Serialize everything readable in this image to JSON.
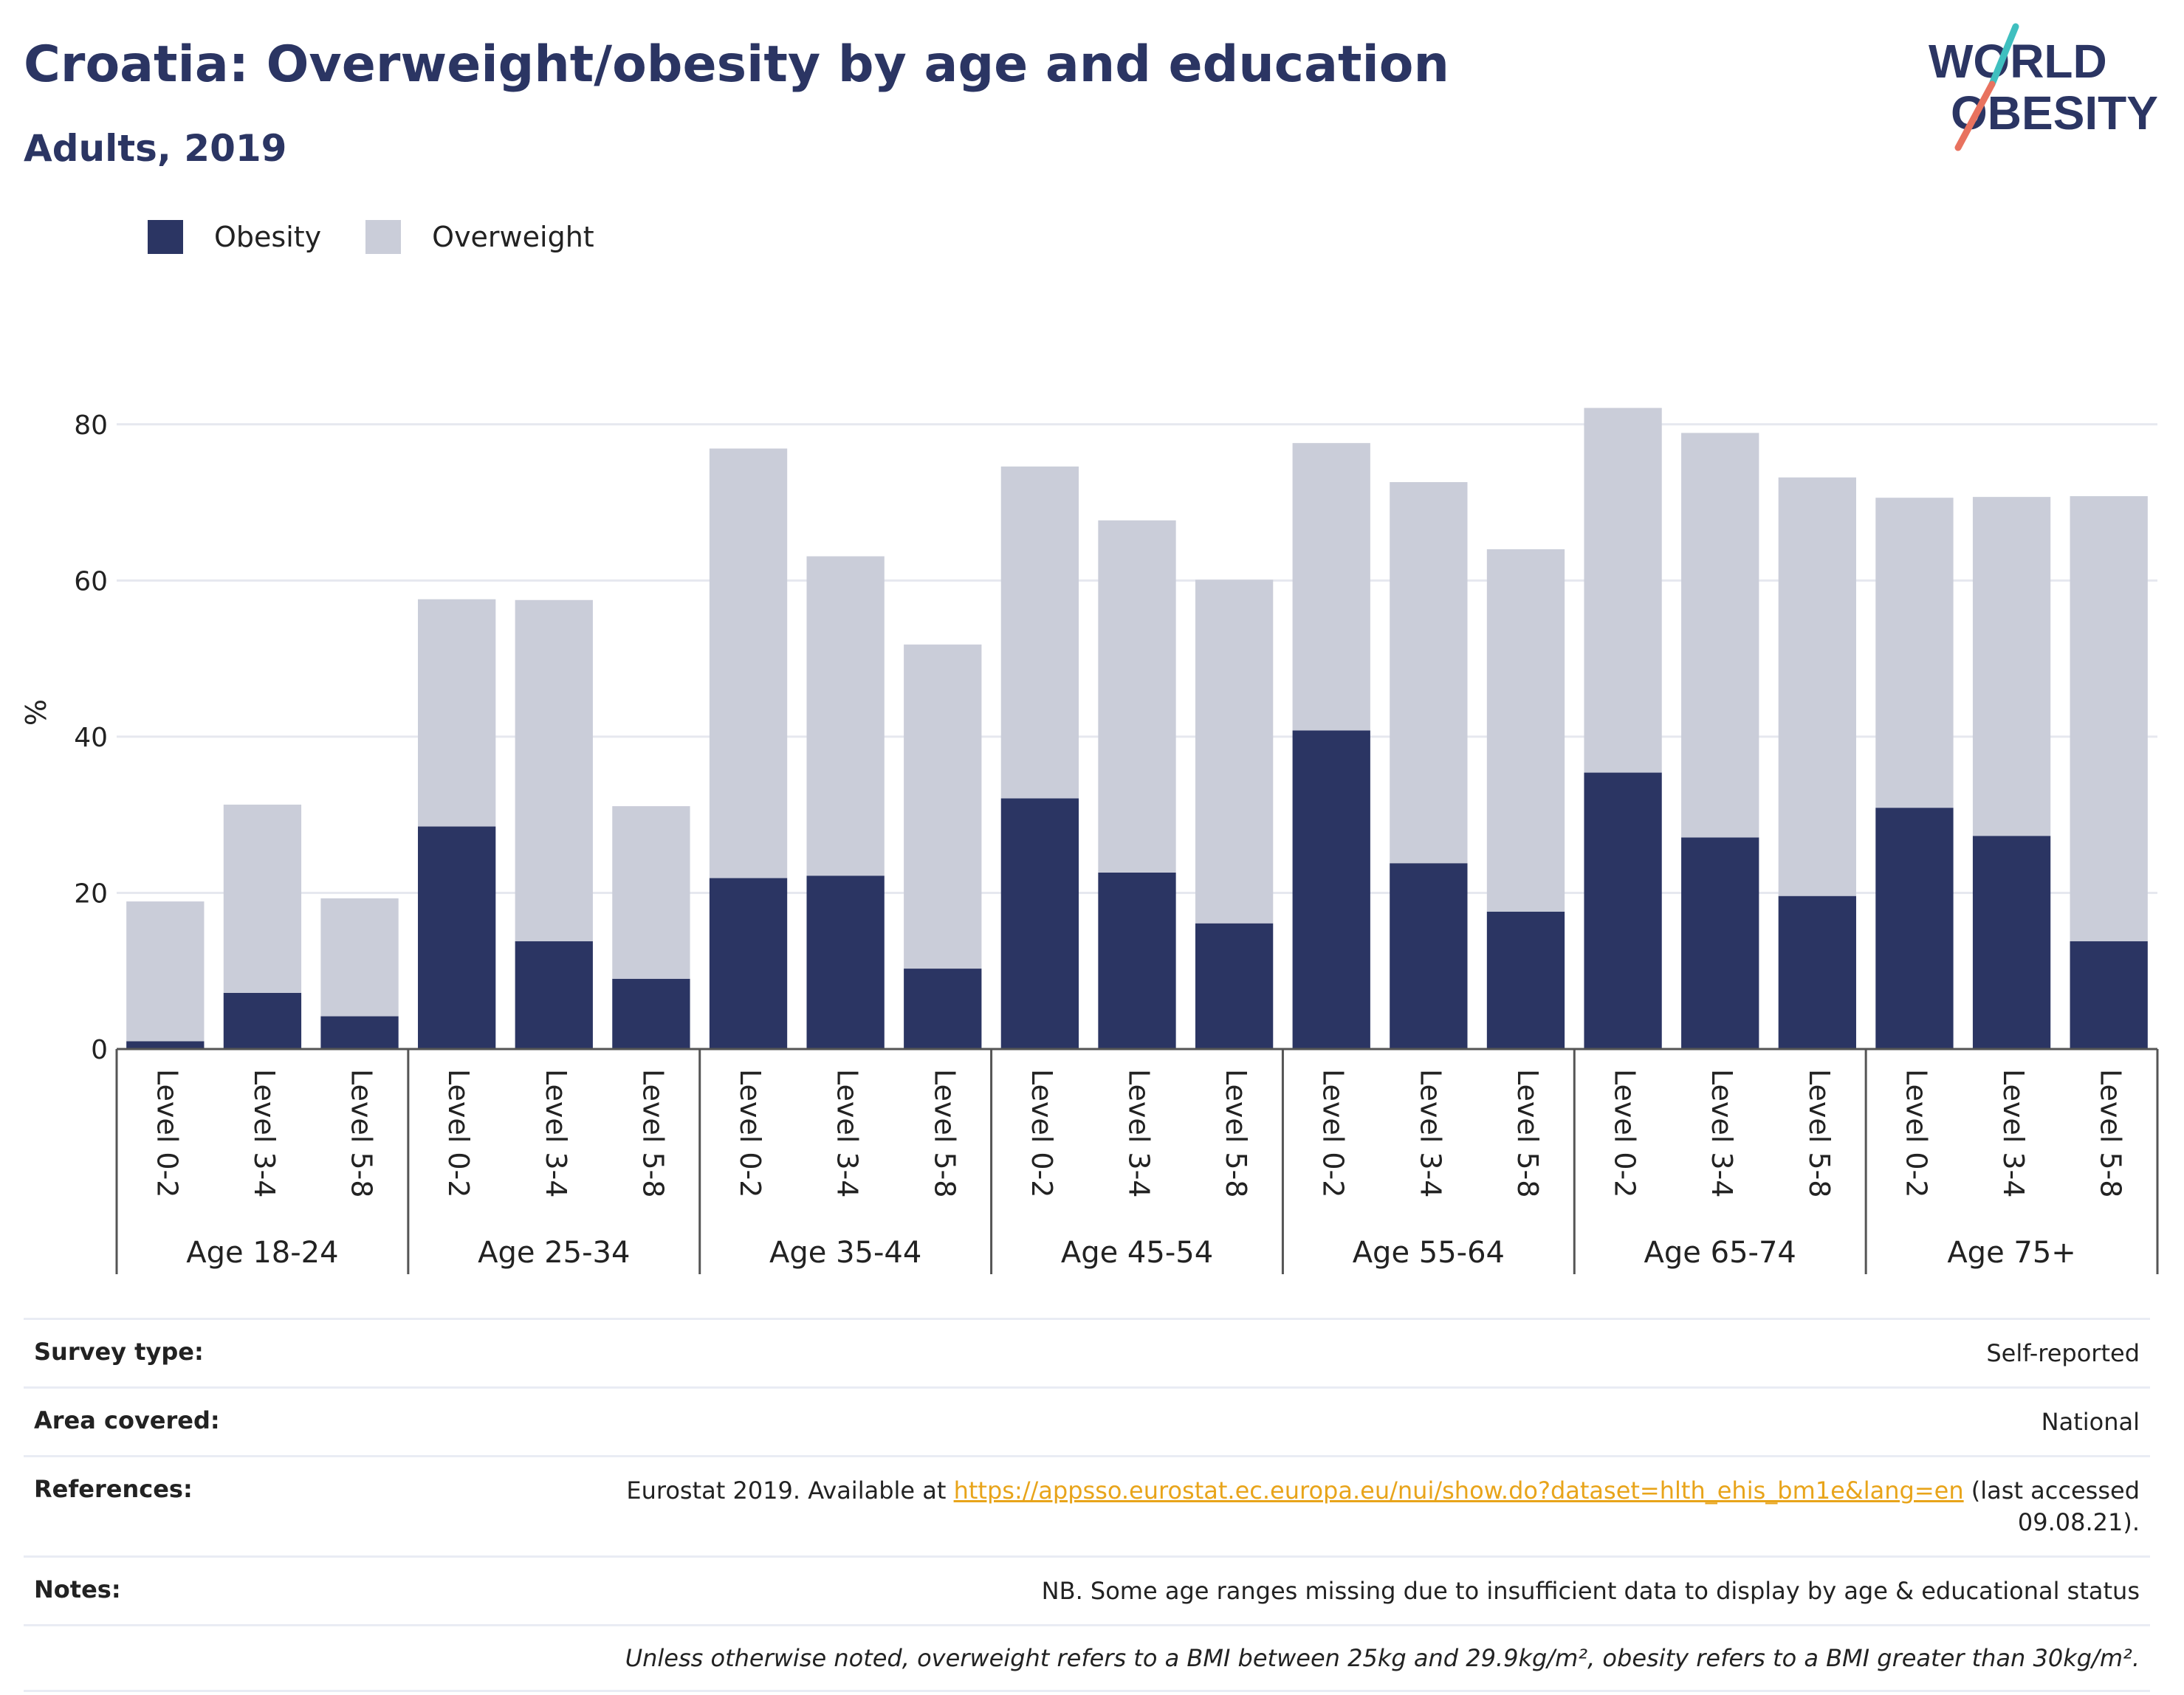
{
  "header": {
    "title": "Croatia: Overweight/obesity by age and education",
    "subtitle": "Adults, 2019"
  },
  "logo": {
    "icon": "world-obesity-logo",
    "line1": "WORLD",
    "line2": "OBESITY",
    "colors": {
      "text": "#2b3563",
      "slash_teal": "#3fbfbf",
      "slash_coral": "#e8725f"
    }
  },
  "colors": {
    "obesity": "#2b3563",
    "overweight": "#cacdd9",
    "grid": "#e6e8ef",
    "axis": "#555555"
  },
  "chart_data": {
    "type": "bar",
    "stacked": true,
    "title": "Croatia: Overweight/obesity by age and education",
    "subtitle": "Adults, 2019",
    "ylabel": "%",
    "xlabel": "",
    "ylim": [
      0,
      90
    ],
    "yticks": [
      0,
      20,
      40,
      60,
      80
    ],
    "grid": true,
    "legend_position": "top-left",
    "groups": [
      {
        "label": "Age 18-24",
        "categories": [
          "Level 0-2",
          "Level 3-4",
          "Level 5-8"
        ]
      },
      {
        "label": "Age 25-34",
        "categories": [
          "Level 0-2",
          "Level 3-4",
          "Level 5-8"
        ]
      },
      {
        "label": "Age 35-44",
        "categories": [
          "Level 0-2",
          "Level 3-4",
          "Level 5-8"
        ]
      },
      {
        "label": "Age 45-54",
        "categories": [
          "Level 0-2",
          "Level 3-4",
          "Level 5-8"
        ]
      },
      {
        "label": "Age 55-64",
        "categories": [
          "Level 0-2",
          "Level 3-4",
          "Level 5-8"
        ]
      },
      {
        "label": "Age 65-74",
        "categories": [
          "Level 0-2",
          "Level 3-4",
          "Level 5-8"
        ]
      },
      {
        "label": "Age 75+",
        "categories": [
          "Level 0-2",
          "Level 3-4",
          "Level 5-8"
        ]
      }
    ],
    "series": [
      {
        "name": "Obesity",
        "color": "#2b3563",
        "values": [
          1.0,
          7.2,
          4.2,
          28.5,
          13.8,
          9.0,
          21.9,
          22.2,
          10.3,
          32.1,
          22.6,
          16.1,
          40.8,
          23.8,
          17.6,
          35.4,
          27.1,
          19.6,
          30.9,
          27.3,
          13.8
        ]
      },
      {
        "name": "Overweight",
        "color": "#cacdd9",
        "values": [
          17.9,
          24.1,
          15.1,
          29.1,
          43.7,
          22.1,
          55.0,
          40.9,
          41.5,
          42.5,
          45.1,
          44.0,
          36.8,
          48.8,
          46.4,
          46.7,
          51.8,
          53.6,
          39.7,
          43.4,
          57.0
        ]
      }
    ]
  },
  "info": {
    "survey_type_label": "Survey type:",
    "survey_type_value": "Self-reported",
    "area_label": "Area covered:",
    "area_value": "National",
    "references_label": "References:",
    "references_prefix": "Eurostat 2019. Available at ",
    "references_link": "https://appsso.eurostat.ec.europa.eu/nui/show.do?dataset=hlth_ehis_bm1e&lang=en",
    "references_suffix": " (last accessed",
    "references_suffix2": "09.08.21).",
    "notes_label": "Notes:",
    "notes_value": "NB. Some age ranges missing due to insufficient data to display by age & educational status",
    "definition_note": "Unless otherwise noted, overweight refers to a BMI between 25kg and 29.9kg/m², obesity refers to a BMI greater than 30kg/m²."
  }
}
